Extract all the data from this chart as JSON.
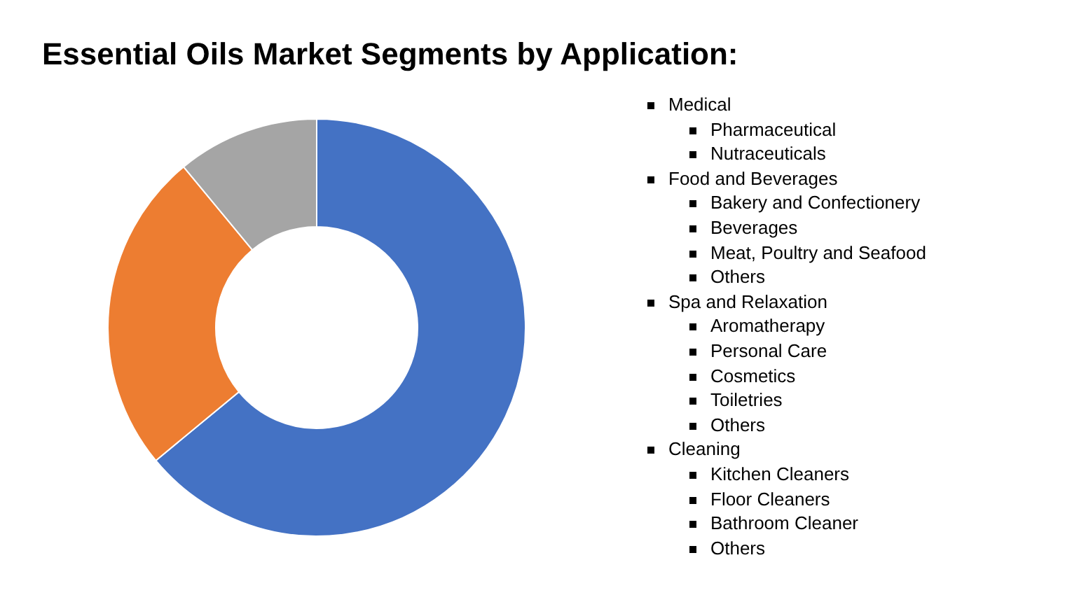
{
  "chart_data": {
    "type": "donut",
    "title": "Essential Oils Market Segments by Application:",
    "categories": [
      null,
      null,
      null
    ],
    "values": [
      64,
      25,
      11
    ],
    "colors": [
      "#4472c4",
      "#ed7d31",
      "#a5a5a5"
    ],
    "legend": false,
    "annotations": [
      "Medical",
      "Pharmaceutical",
      "Nutraceuticals",
      "Food and Beverages",
      "Bakery and Confectionery",
      "Beverages",
      "Meat, Poultry and Seafood",
      "Others",
      "Spa and Relaxation",
      "Aromatherapy",
      "Personal Care",
      "Cosmetics",
      "Toiletries",
      "Others",
      "Cleaning",
      "Kitchen Cleaners",
      "Floor Cleaners",
      "Bathroom Cleaner",
      "Others"
    ]
  }
}
